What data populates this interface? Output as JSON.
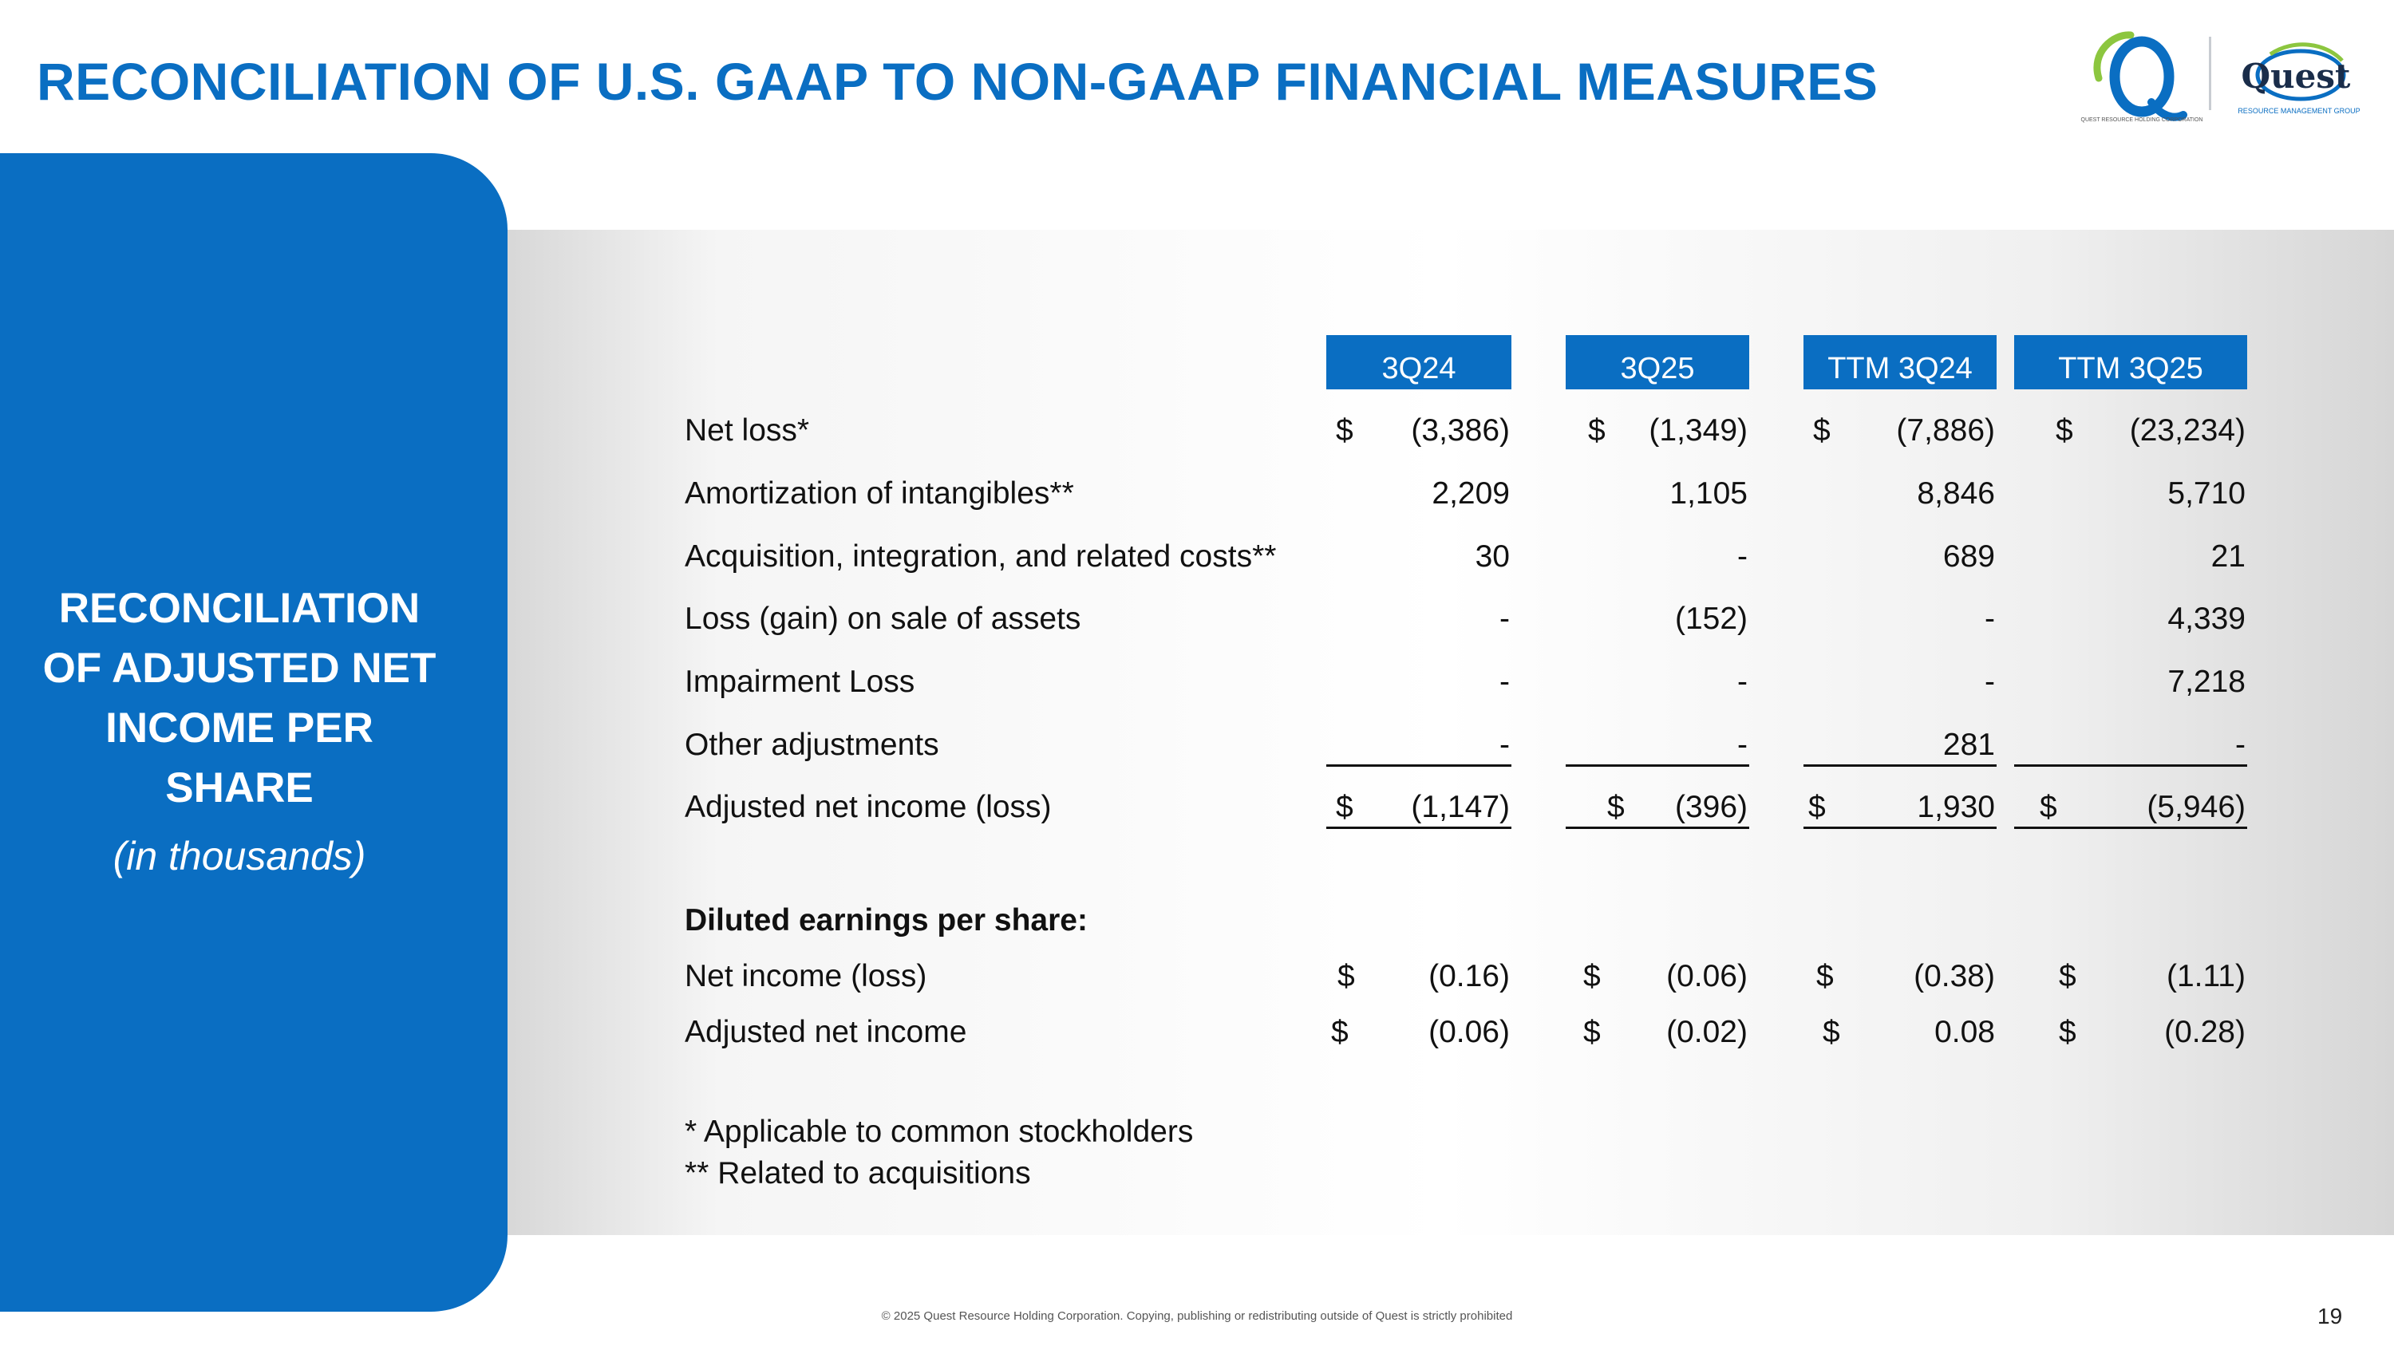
{
  "title": "RECONCILIATION OF U.S. GAAP TO NON-GAAP FINANCIAL MEASURES",
  "logos": {
    "left": {
      "icon": "quest-q-logo",
      "caption": "QUEST RESOURCE HOLDING CORPORATION"
    },
    "right": {
      "name": "Quest",
      "caption": "RESOURCE MANAGEMENT GROUP",
      "icon": "quest-globe-logo"
    }
  },
  "side": {
    "heading": [
      "RECONCILIATION",
      "OF ADJUSTED NET",
      "INCOME PER",
      "SHARE"
    ],
    "subheading": "(in thousands)"
  },
  "columns": [
    "3Q24",
    "3Q25",
    "TTM 3Q24",
    "TTM 3Q25"
  ],
  "rows": [
    {
      "label": "Net loss*",
      "dollar": true,
      "values": [
        "(3,386)",
        "(1,349)",
        "(7,886)",
        "(23,234)"
      ]
    },
    {
      "label": "Amortization of intangibles**",
      "dollar": false,
      "values": [
        "2,209",
        "1,105",
        "8,846",
        "5,710"
      ]
    },
    {
      "label": "Acquisition, integration, and related costs**",
      "dollar": false,
      "values": [
        "30",
        "-",
        "689",
        "21"
      ]
    },
    {
      "label": "Loss (gain) on sale of assets",
      "dollar": false,
      "values": [
        "-",
        "(152)",
        "-",
        "4,339"
      ]
    },
    {
      "label": "Impairment Loss",
      "dollar": false,
      "values": [
        "-",
        "-",
        "-",
        "7,218"
      ]
    },
    {
      "label": "Other adjustments",
      "dollar": false,
      "values": [
        "-",
        "-",
        "281",
        "-"
      ]
    },
    {
      "label": "Adjusted net income (loss)",
      "dollar": true,
      "values": [
        "(1,147)",
        "(396)",
        "1,930",
        "(5,946)"
      ]
    }
  ],
  "eps": {
    "heading": "Diluted earnings per share:",
    "rows": [
      {
        "label": "Net income (loss)",
        "values": [
          "(0.16)",
          "(0.06)",
          "(0.38)",
          "(1.11)"
        ]
      },
      {
        "label": "Adjusted net income",
        "values": [
          "(0.06)",
          "(0.02)",
          "0.08",
          "(0.28)"
        ]
      }
    ]
  },
  "currency_symbol": "$",
  "footnotes": [
    "* Applicable to common stockholders",
    "** Related to acquisitions"
  ],
  "footer": "© 2025 Quest Resource Holding Corporation.  Copying, publishing or redistributing outside of Quest is strictly prohibited",
  "page_number": "19",
  "colors": {
    "brand_blue": "#0a6ec2",
    "logo_green": "#8cc63f"
  }
}
